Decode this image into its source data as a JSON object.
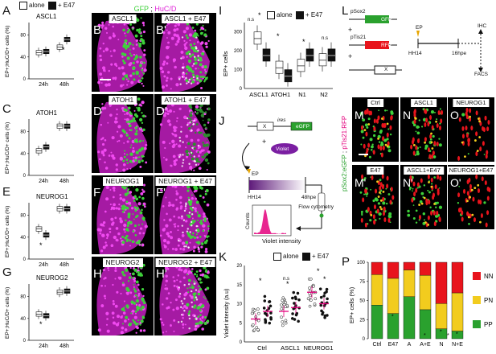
{
  "panel_letters": {
    "A": "A",
    "B": "B",
    "Bp": "B'",
    "C": "C",
    "D": "D",
    "Dp": "D'",
    "E": "E",
    "F": "F",
    "Fp": "F'",
    "G": "G",
    "H": "H",
    "Hp": "H'",
    "I": "I",
    "J": "J",
    "K": "K",
    "L": "L",
    "M": "M",
    "N": "N",
    "O": "O",
    "Mp": "M'",
    "Np": "N'",
    "Op": "O'",
    "P": "P"
  },
  "legend": {
    "alone": "alone",
    "e47": "+ E47"
  },
  "header_stain": {
    "gfp": "GFP",
    "sep": " ; ",
    "huc": "HuC/D"
  },
  "box_ylabel": "EP+;HuC/D+ cells (%)",
  "box_xticks": [
    "24h",
    "48h"
  ],
  "box_yticks": [
    "0",
    "40",
    "80"
  ],
  "box_titles": {
    "A": "ASCL1",
    "C": "ATOH1",
    "E": "NEUROG1",
    "G": "NEUROG2"
  },
  "micro_labels": {
    "B": "ASCL1",
    "Bp": "ASCL1 + E47",
    "D": "ATOH1",
    "Dp": "ATOH1 + E47",
    "F": "NEUROG1",
    "Fp": "NEUROG1 + E47",
    "H": "NEUROG2",
    "Hp": "NEUROG2 + E47"
  },
  "panel_I": {
    "ylabel": "EP+ cells",
    "xticks": [
      "ASCL1",
      "ATOH1",
      "N1",
      "N2"
    ],
    "yticks": [
      "0",
      "100",
      "200",
      "300"
    ],
    "sig": [
      "*",
      "n.s",
      "*",
      "*",
      "n.s"
    ]
  },
  "panel_J": {
    "x": "X",
    "ires": "ires",
    "egfp": "eGFP",
    "violet": "Violet",
    "ep": "EP",
    "hh14": "HH14",
    "hpe48": "48hpe",
    "flow": "Flow cytometry",
    "counts": "Counts",
    "vint": "Violet intensity",
    "plus": "+"
  },
  "panel_K": {
    "ylabel": "Violet intensity (a.u)",
    "xticks": [
      "Ctrl",
      "ASCL1",
      "NEUROG1"
    ],
    "yticks": [
      "0",
      "5",
      "10",
      "15",
      "20"
    ],
    "sig": [
      "*",
      "n.s",
      "*",
      "*",
      "*"
    ]
  },
  "panel_L": {
    "psox2": "pSox2",
    "gfp": "GFP",
    "ptis21": "pTis21",
    "rfp": "RFP",
    "x": "X",
    "plus1": "+",
    "plus2": "+",
    "ep": "EP",
    "hh14": "HH14",
    "hpe16": "16hpe",
    "ihc": "IHC",
    "facs": "FACS"
  },
  "panel_M": {
    "M": "Ctrl",
    "N": "ASCL1",
    "O": "NEUROG1",
    "Mp": "E47",
    "Np": "ASCL1+E47",
    "Op": "NEUROG1+E47",
    "side_green": "pSox2:eGFP",
    "side_sep": " ; ",
    "side_red": "pTis21:RFP"
  },
  "panel_P": {
    "ylabel": "EP+ cells (%)",
    "xticks": [
      "Ctrl",
      "E47",
      "A",
      "A+E",
      "N",
      "N+E"
    ],
    "yticks": [
      "0",
      "25",
      "50",
      "75",
      "100"
    ],
    "legend": [
      "NN",
      "PN",
      "PP"
    ],
    "star": "*"
  },
  "colors": {
    "NN": "#e8141c",
    "PN": "#f2cc1e",
    "PP": "#2aa12e",
    "gfp": "#3ed13a",
    "huc": "#e020d8",
    "violet": "#6a1b9a",
    "accent_pink": "#e4007c"
  },
  "chart_data": [
    {
      "type": "box",
      "id": "A",
      "title": "ASCL1",
      "categories": [
        "24h",
        "48h"
      ],
      "series": [
        {
          "name": "alone",
          "median": [
            48,
            58
          ]
        },
        {
          "name": "+ E47",
          "median": [
            50,
            72
          ]
        }
      ],
      "ylim": [
        0,
        100
      ],
      "ylabel": "EP+;HuC/D+ cells (%)"
    },
    {
      "type": "box",
      "id": "C",
      "title": "ATOH1",
      "categories": [
        "24h",
        "48h"
      ],
      "series": [
        {
          "name": "alone",
          "median": [
            45,
            90
          ]
        },
        {
          "name": "+ E47",
          "median": [
            52,
            90
          ]
        }
      ],
      "ylim": [
        0,
        100
      ],
      "ylabel": "EP+;HuC/D+ cells (%)"
    },
    {
      "type": "box",
      "id": "E",
      "title": "NEUROG1",
      "categories": [
        "24h",
        "48h"
      ],
      "series": [
        {
          "name": "alone",
          "median": [
            55,
            92
          ]
        },
        {
          "name": "+ E47",
          "median": [
            44,
            92
          ]
        }
      ],
      "ylim": [
        0,
        100
      ],
      "ylabel": "EP+;HuC/D+ cells (%)"
    },
    {
      "type": "box",
      "id": "G",
      "title": "NEUROG2",
      "categories": [
        "24h",
        "48h"
      ],
      "series": [
        {
          "name": "alone",
          "median": [
            48,
            88
          ]
        },
        {
          "name": "+ E47",
          "median": [
            45,
            90
          ]
        }
      ],
      "ylim": [
        0,
        100
      ],
      "ylabel": "EP+;HuC/D+ cells (%)"
    },
    {
      "type": "box",
      "id": "I",
      "categories": [
        "ASCL1",
        "ATOH1",
        "N1",
        "N2"
      ],
      "series": [
        {
          "name": "alone",
          "median": [
            265,
            110,
            120,
            150
          ]
        },
        {
          "name": "+ E47",
          "median": [
            175,
            65,
            175,
            175
          ]
        }
      ],
      "ylim": [
        0,
        350
      ],
      "ylabel": "EP+ cells"
    },
    {
      "type": "scatter",
      "id": "K",
      "categories": [
        "Ctrl",
        "ASCL1",
        "NEUROG1"
      ],
      "series": [
        {
          "name": "alone",
          "mean": [
            6,
            8,
            13
          ]
        },
        {
          "name": "+ E47",
          "mean": [
            8,
            9,
            10
          ]
        }
      ],
      "ylim": [
        0,
        20
      ],
      "ylabel": "Violet intensity (a.u)"
    },
    {
      "type": "bar",
      "id": "P",
      "stacked": true,
      "categories": [
        "Ctrl",
        "E47",
        "A",
        "A+E",
        "N",
        "N+E"
      ],
      "series": [
        {
          "name": "PP",
          "values": [
            44,
            33,
            55,
            38,
            13,
            10
          ]
        },
        {
          "name": "PN",
          "values": [
            40,
            46,
            35,
            45,
            33,
            50
          ]
        },
        {
          "name": "NN",
          "values": [
            16,
            21,
            10,
            17,
            54,
            40
          ]
        }
      ],
      "ylim": [
        0,
        100
      ],
      "ylabel": "EP+ cells (%)"
    }
  ]
}
